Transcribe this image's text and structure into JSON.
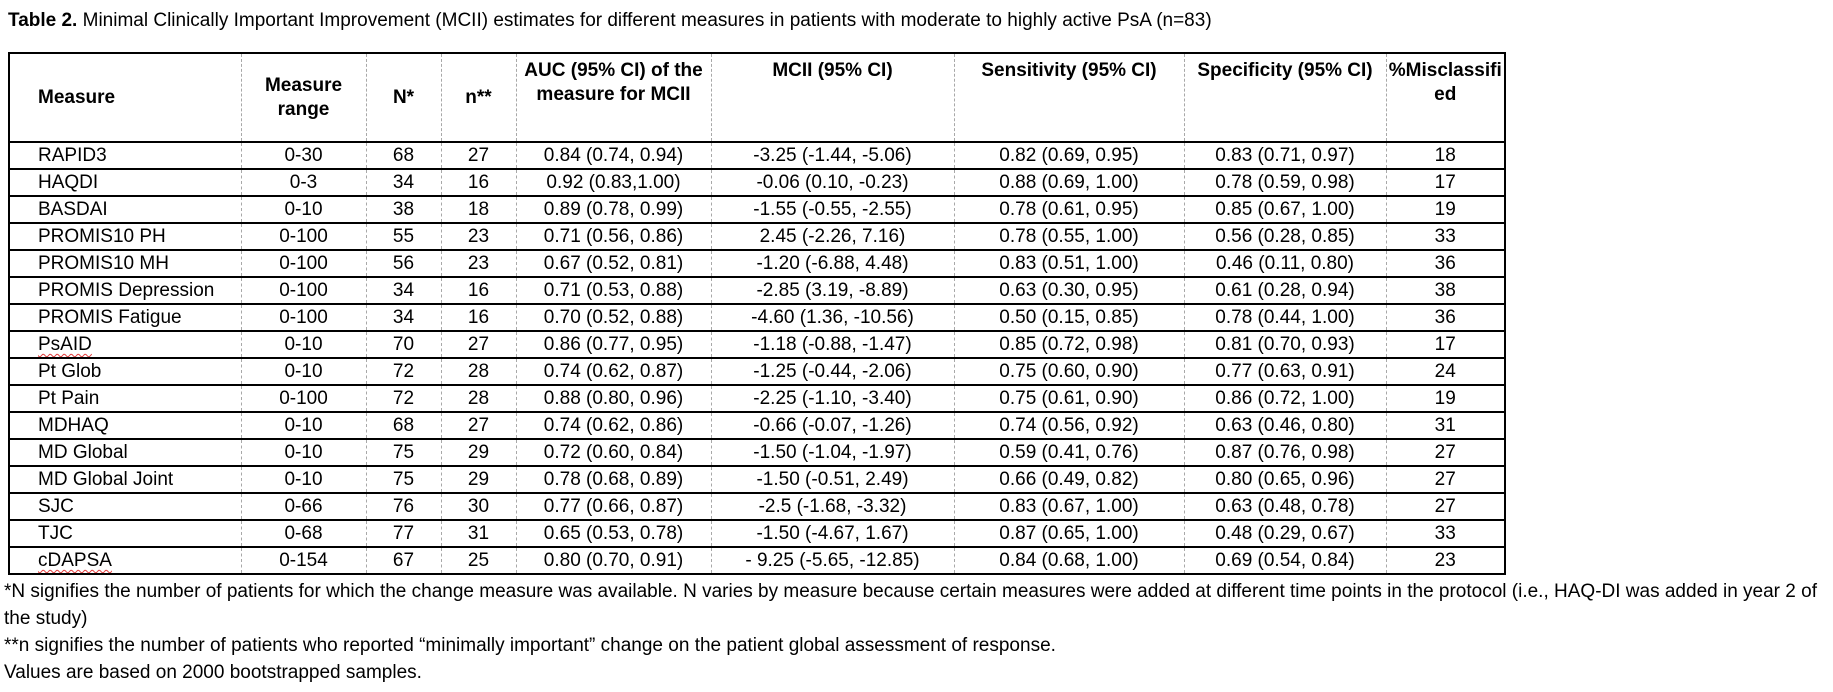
{
  "title": {
    "label": "Table 2.",
    "text": "Minimal Clinically Important Improvement (MCII) estimates for different measures in patients with moderate to highly active PsA (n=83)"
  },
  "colors": {
    "table_border": "#000000",
    "column_divider": "#a8a8a8",
    "spellcheck_underline": "#e03a3a"
  },
  "table": {
    "columns": [
      {
        "key": "measure",
        "label": "Measure"
      },
      {
        "key": "range",
        "label": "Measure range"
      },
      {
        "key": "N",
        "label": "N*"
      },
      {
        "key": "n",
        "label": "n**"
      },
      {
        "key": "auc",
        "label": "AUC (95% CI) of the measure for MCII"
      },
      {
        "key": "mcii",
        "label": "MCII (95% CI)"
      },
      {
        "key": "sens",
        "label": "Sensitivity (95% CI)"
      },
      {
        "key": "spec",
        "label": "Specificity (95% CI)"
      },
      {
        "key": "misclass",
        "label": "%Misclassified"
      }
    ],
    "rows": [
      {
        "misspelled": false,
        "cells": [
          "RAPID3",
          "0-30",
          "68",
          "27",
          "0.84 (0.74, 0.94)",
          "-3.25 (-1.44, -5.06)",
          "0.82 (0.69, 0.95)",
          "0.83 (0.71, 0.97)",
          "18"
        ]
      },
      {
        "misspelled": false,
        "cells": [
          "HAQDI",
          "0-3",
          "34",
          "16",
          "0.92 (0.83,1.00)",
          "-0.06 (0.10, -0.23)",
          "0.88 (0.69, 1.00)",
          "0.78 (0.59, 0.98)",
          "17"
        ]
      },
      {
        "misspelled": false,
        "cells": [
          "BASDAI",
          "0-10",
          "38",
          "18",
          "0.89 (0.78, 0.99)",
          "-1.55 (-0.55, -2.55)",
          "0.78 (0.61, 0.95)",
          "0.85 (0.67, 1.00)",
          "19"
        ]
      },
      {
        "misspelled": false,
        "cells": [
          "PROMIS10 PH",
          "0-100",
          "55",
          "23",
          "0.71 (0.56, 0.86)",
          "2.45 (-2.26, 7.16)",
          "0.78 (0.55, 1.00)",
          "0.56 (0.28, 0.85)",
          "33"
        ]
      },
      {
        "misspelled": false,
        "cells": [
          "PROMIS10 MH",
          "0-100",
          "56",
          "23",
          "0.67 (0.52, 0.81)",
          "-1.20 (-6.88, 4.48)",
          "0.83 (0.51, 1.00)",
          "0.46 (0.11, 0.80)",
          "36"
        ]
      },
      {
        "misspelled": false,
        "cells": [
          "PROMIS Depression",
          "0-100",
          "34",
          "16",
          "0.71 (0.53, 0.88)",
          "-2.85 (3.19, -8.89)",
          "0.63 (0.30, 0.95)",
          "0.61 (0.28, 0.94)",
          "38"
        ]
      },
      {
        "misspelled": false,
        "cells": [
          "PROMIS Fatigue",
          "0-100",
          "34",
          "16",
          "0.70 (0.52, 0.88)",
          "-4.60 (1.36, -10.56)",
          "0.50 (0.15, 0.85)",
          "0.78 (0.44, 1.00)",
          "36"
        ]
      },
      {
        "misspelled": true,
        "cells": [
          "PsAID",
          "0-10",
          "70",
          "27",
          "0.86 (0.77, 0.95)",
          "-1.18 (-0.88, -1.47)",
          "0.85 (0.72, 0.98)",
          "0.81 (0.70, 0.93)",
          "17"
        ]
      },
      {
        "misspelled": false,
        "cells": [
          "Pt Glob",
          "0-10",
          "72",
          "28",
          "0.74 (0.62, 0.87)",
          "-1.25 (-0.44, -2.06)",
          "0.75 (0.60, 0.90)",
          "0.77 (0.63, 0.91)",
          "24"
        ]
      },
      {
        "misspelled": false,
        "cells": [
          "Pt Pain",
          "0-100",
          "72",
          "28",
          "0.88 (0.80, 0.96)",
          "-2.25 (-1.10, -3.40)",
          "0.75 (0.61, 0.90)",
          "0.86 (0.72, 1.00)",
          "19"
        ]
      },
      {
        "misspelled": false,
        "cells": [
          "MDHAQ",
          "0-10",
          "68",
          "27",
          "0.74 (0.62, 0.86)",
          "-0.66 (-0.07, -1.26)",
          "0.74 (0.56, 0.92)",
          "0.63 (0.46, 0.80)",
          "31"
        ]
      },
      {
        "misspelled": false,
        "cells": [
          "MD Global",
          "0-10",
          "75",
          "29",
          "0.72 (0.60, 0.84)",
          "-1.50 (-1.04, -1.97)",
          "0.59 (0.41, 0.76)",
          "0.87 (0.76, 0.98)",
          "27"
        ]
      },
      {
        "misspelled": false,
        "cells": [
          "MD Global Joint",
          "0-10",
          "75",
          "29",
          "0.78 (0.68, 0.89)",
          "-1.50 (-0.51, 2.49)",
          "0.66 (0.49, 0.82)",
          "0.80 (0.65, 0.96)",
          "27"
        ]
      },
      {
        "misspelled": false,
        "cells": [
          "SJC",
          "0-66",
          "76",
          "30",
          "0.77 (0.66, 0.87)",
          "-2.5 (-1.68, -3.32)",
          "0.83 (0.67, 1.00)",
          "0.63 (0.48, 0.78)",
          "27"
        ]
      },
      {
        "misspelled": false,
        "cells": [
          "TJC",
          "0-68",
          "77",
          "31",
          "0.65 (0.53, 0.78)",
          "-1.50 (-4.67, 1.67)",
          "0.87 (0.65, 1.00)",
          "0.48 (0.29, 0.67)",
          "33"
        ]
      },
      {
        "misspelled": true,
        "cells": [
          "cDAPSA",
          "0-154",
          "67",
          "25",
          "0.80 (0.70, 0.91)",
          "- 9.25 (-5.65, -12.85)",
          "0.84 (0.68, 1.00)",
          "0.69 (0.54, 0.84)",
          "23"
        ]
      }
    ]
  },
  "footnotes": [
    "*N signifies the number of patients for which the change measure was available. N varies by measure because certain measures were added at different time points in the protocol (i.e., HAQ-DI was added in year 2 of the study)",
    "**n signifies the number of patients who reported “minimally important” change on the patient global assessment of response.",
    "Values are based on 2000 bootstrapped samples."
  ]
}
